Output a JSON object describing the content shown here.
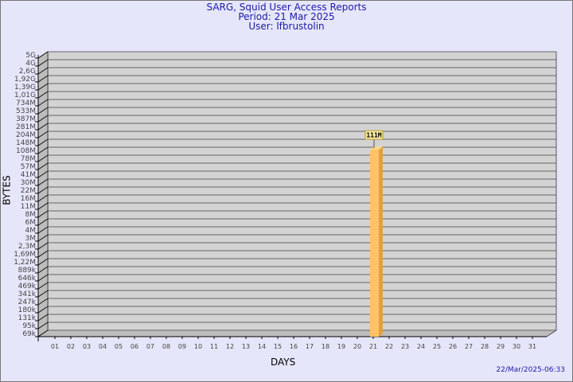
{
  "chart_data": {
    "type": "bar",
    "title": "SARG, Squid User Access Reports",
    "subtitle": [
      "Period: 21 Mar 2025",
      "User: lfbrustolin"
    ],
    "xlabel": "DAYS",
    "ylabel": "BYTES",
    "scale": "log",
    "grid": true,
    "categories": [
      "01",
      "02",
      "03",
      "04",
      "05",
      "06",
      "07",
      "08",
      "09",
      "10",
      "11",
      "12",
      "13",
      "14",
      "15",
      "16",
      "17",
      "18",
      "19",
      "20",
      "21",
      "22",
      "23",
      "24",
      "25",
      "26",
      "27",
      "28",
      "29",
      "30",
      "31"
    ],
    "bars": [
      {
        "category": "21",
        "value": 111000000,
        "label": "111M"
      }
    ],
    "y_ticks": [
      "5G",
      "4G",
      "2,6G",
      "1,92G",
      "1,39G",
      "1,01G",
      "734M",
      "533M",
      "387M",
      "281M",
      "204M",
      "148M",
      "108M",
      "78M",
      "57M",
      "41M",
      "30M",
      "22M",
      "16M",
      "11M",
      "8M",
      "6M",
      "4M",
      "3M",
      "2,3M",
      "1,69M",
      "1,22M",
      "889k",
      "646k",
      "469k",
      "341k",
      "247k",
      "180k",
      "131k",
      "95k",
      "69k"
    ],
    "colors": {
      "bar": "#ffc266",
      "bar_side": "#e0a040",
      "plot_bg": "#d3d3d3",
      "page_bg": "#e6e6fa",
      "title": "#1a1aa6"
    }
  },
  "footer": {
    "timestamp": "22/Mar/2025-06:33"
  }
}
